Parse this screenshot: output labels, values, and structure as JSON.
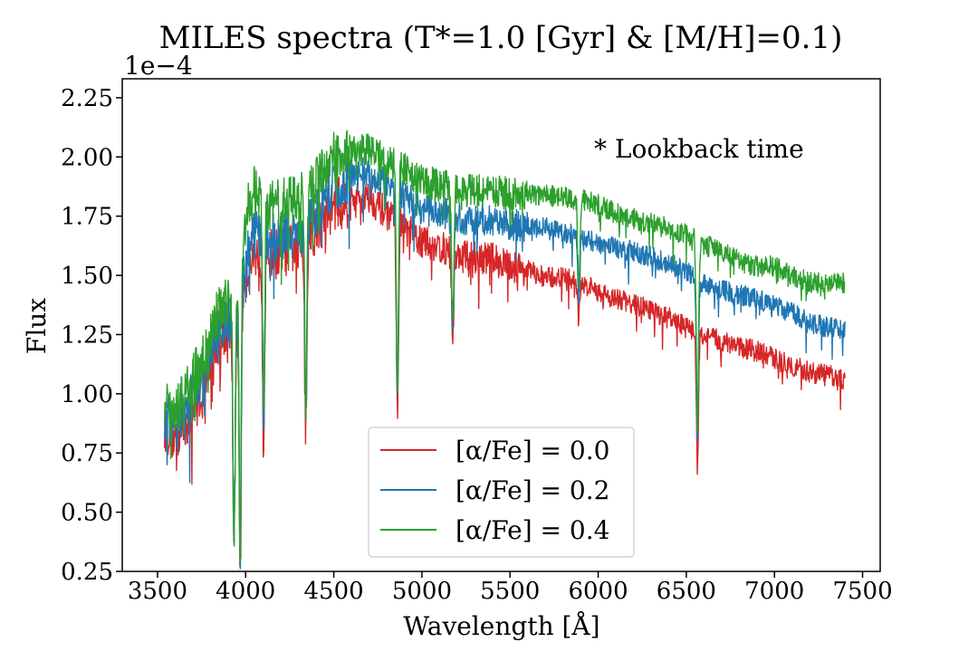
{
  "chart_data": {
    "type": "line",
    "title": "MILES spectra (T*=1.0 [Gyr] & [M/H]=0.1)",
    "xlabel": "Wavelength [Å]",
    "ylabel": "Flux",
    "y_offset_label": "1e−4",
    "annotation": "* Lookback time",
    "xlim": [
      3300,
      7600
    ],
    "ylim": [
      0.25,
      2.33
    ],
    "xticks": [
      "3500",
      "4000",
      "4500",
      "5000",
      "5500",
      "6000",
      "6500",
      "7000",
      "7500"
    ],
    "yticks": [
      "0.25",
      "0.50",
      "0.75",
      "1.00",
      "1.25",
      "1.50",
      "1.75",
      "2.00",
      "2.25"
    ],
    "grid": false,
    "legend_position": "bottom-center",
    "series": [
      {
        "name": "[α/Fe] = 0.0",
        "color": "#d62728",
        "points": [
          [
            3540,
            0.86
          ],
          [
            3600,
            0.82
          ],
          [
            3650,
            0.85
          ],
          [
            3700,
            0.95
          ],
          [
            3750,
            1.0
          ],
          [
            3800,
            1.15
          ],
          [
            3850,
            1.25
          ],
          [
            3900,
            1.28
          ],
          [
            3950,
            1.3
          ],
          [
            4000,
            1.5
          ],
          [
            4050,
            1.6
          ],
          [
            4100,
            1.58
          ],
          [
            4200,
            1.6
          ],
          [
            4300,
            1.62
          ],
          [
            4400,
            1.7
          ],
          [
            4500,
            1.8
          ],
          [
            4600,
            1.82
          ],
          [
            4700,
            1.83
          ],
          [
            4800,
            1.76
          ],
          [
            4900,
            1.7
          ],
          [
            5000,
            1.64
          ],
          [
            5100,
            1.62
          ],
          [
            5200,
            1.58
          ],
          [
            5300,
            1.58
          ],
          [
            5400,
            1.57
          ],
          [
            5500,
            1.54
          ],
          [
            5600,
            1.52
          ],
          [
            5700,
            1.49
          ],
          [
            5800,
            1.49
          ],
          [
            5900,
            1.47
          ],
          [
            6000,
            1.43
          ],
          [
            6100,
            1.4
          ],
          [
            6200,
            1.38
          ],
          [
            6300,
            1.35
          ],
          [
            6400,
            1.32
          ],
          [
            6500,
            1.28
          ],
          [
            6600,
            1.25
          ],
          [
            6700,
            1.22
          ],
          [
            6800,
            1.2
          ],
          [
            6900,
            1.18
          ],
          [
            7000,
            1.15
          ],
          [
            7100,
            1.12
          ],
          [
            7200,
            1.09
          ],
          [
            7300,
            1.08
          ],
          [
            7400,
            1.06
          ]
        ],
        "lines": [
          [
            3934,
            0.36
          ],
          [
            3969,
            0.34
          ],
          [
            4102,
            0.88
          ],
          [
            4341,
            0.88
          ],
          [
            4861,
            0.91
          ],
          [
            5175,
            1.23
          ],
          [
            5890,
            1.32
          ],
          [
            6563,
            0.67
          ]
        ]
      },
      {
        "name": "[α/Fe] = 0.2",
        "color": "#1f77b4",
        "points": [
          [
            3540,
            0.9
          ],
          [
            3600,
            0.86
          ],
          [
            3650,
            0.9
          ],
          [
            3700,
            1.0
          ],
          [
            3750,
            1.05
          ],
          [
            3800,
            1.18
          ],
          [
            3850,
            1.28
          ],
          [
            3900,
            1.3
          ],
          [
            3950,
            1.32
          ],
          [
            4000,
            1.55
          ],
          [
            4050,
            1.68
          ],
          [
            4100,
            1.65
          ],
          [
            4200,
            1.66
          ],
          [
            4300,
            1.68
          ],
          [
            4400,
            1.77
          ],
          [
            4500,
            1.88
          ],
          [
            4600,
            1.92
          ],
          [
            4700,
            1.93
          ],
          [
            4800,
            1.88
          ],
          [
            4900,
            1.83
          ],
          [
            5000,
            1.78
          ],
          [
            5100,
            1.77
          ],
          [
            5200,
            1.74
          ],
          [
            5300,
            1.74
          ],
          [
            5400,
            1.73
          ],
          [
            5500,
            1.72
          ],
          [
            5600,
            1.7
          ],
          [
            5700,
            1.7
          ],
          [
            5800,
            1.68
          ],
          [
            5900,
            1.67
          ],
          [
            6000,
            1.63
          ],
          [
            6100,
            1.62
          ],
          [
            6200,
            1.6
          ],
          [
            6300,
            1.58
          ],
          [
            6400,
            1.55
          ],
          [
            6500,
            1.52
          ],
          [
            6600,
            1.46
          ],
          [
            6700,
            1.44
          ],
          [
            6800,
            1.42
          ],
          [
            6900,
            1.4
          ],
          [
            7000,
            1.37
          ],
          [
            7100,
            1.34
          ],
          [
            7200,
            1.3
          ],
          [
            7300,
            1.28
          ],
          [
            7400,
            1.27
          ]
        ],
        "lines": [
          [
            3934,
            0.36
          ],
          [
            3969,
            0.34
          ],
          [
            4102,
            0.9
          ],
          [
            4341,
            0.9
          ],
          [
            4861,
            0.97
          ],
          [
            5175,
            1.26
          ],
          [
            5890,
            1.38
          ],
          [
            6563,
            0.78
          ]
        ]
      },
      {
        "name": "[α/Fe] = 0.4",
        "color": "#2ca02c",
        "points": [
          [
            3540,
            0.96
          ],
          [
            3600,
            0.93
          ],
          [
            3650,
            0.98
          ],
          [
            3700,
            1.08
          ],
          [
            3750,
            1.12
          ],
          [
            3800,
            1.25
          ],
          [
            3850,
            1.35
          ],
          [
            3900,
            1.38
          ],
          [
            3950,
            1.38
          ],
          [
            4000,
            1.75
          ],
          [
            4050,
            1.85
          ],
          [
            4100,
            1.8
          ],
          [
            4200,
            1.8
          ],
          [
            4300,
            1.82
          ],
          [
            4400,
            1.9
          ],
          [
            4500,
            2.0
          ],
          [
            4600,
            2.02
          ],
          [
            4700,
            2.03
          ],
          [
            4800,
            1.98
          ],
          [
            4900,
            1.95
          ],
          [
            5000,
            1.9
          ],
          [
            5100,
            1.88
          ],
          [
            5200,
            1.86
          ],
          [
            5300,
            1.86
          ],
          [
            5400,
            1.85
          ],
          [
            5500,
            1.85
          ],
          [
            5600,
            1.84
          ],
          [
            5700,
            1.84
          ],
          [
            5800,
            1.83
          ],
          [
            5900,
            1.82
          ],
          [
            6000,
            1.8
          ],
          [
            6100,
            1.76
          ],
          [
            6200,
            1.74
          ],
          [
            6300,
            1.72
          ],
          [
            6400,
            1.7
          ],
          [
            6500,
            1.67
          ],
          [
            6600,
            1.63
          ],
          [
            6700,
            1.6
          ],
          [
            6800,
            1.56
          ],
          [
            6900,
            1.54
          ],
          [
            7000,
            1.54
          ],
          [
            7100,
            1.5
          ],
          [
            7200,
            1.47
          ],
          [
            7300,
            1.47
          ],
          [
            7400,
            1.47
          ]
        ],
        "lines": [
          [
            3934,
            0.36
          ],
          [
            3969,
            0.34
          ],
          [
            4102,
            0.93
          ],
          [
            4341,
            0.94
          ],
          [
            4861,
            1.02
          ],
          [
            5175,
            1.3
          ],
          [
            5890,
            1.45
          ],
          [
            6563,
            0.85
          ]
        ]
      }
    ]
  }
}
